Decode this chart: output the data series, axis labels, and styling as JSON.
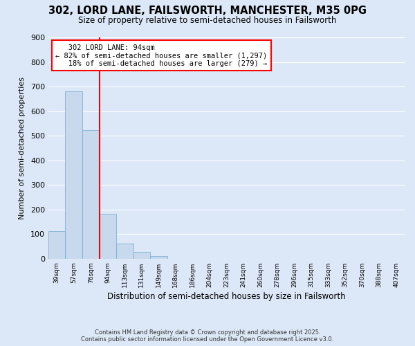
{
  "title": "302, LORD LANE, FAILSWORTH, MANCHESTER, M35 0PG",
  "subtitle": "Size of property relative to semi-detached houses in Failsworth",
  "xlabel": "Distribution of semi-detached houses by size in Failsworth",
  "ylabel": "Number of semi-detached properties",
  "categories": [
    "39sqm",
    "57sqm",
    "76sqm",
    "94sqm",
    "113sqm",
    "131sqm",
    "149sqm",
    "168sqm",
    "186sqm",
    "204sqm",
    "223sqm",
    "241sqm",
    "260sqm",
    "278sqm",
    "296sqm",
    "315sqm",
    "333sqm",
    "352sqm",
    "370sqm",
    "388sqm",
    "407sqm"
  ],
  "values": [
    113,
    681,
    522,
    183,
    62,
    29,
    10,
    0,
    0,
    0,
    0,
    0,
    0,
    0,
    0,
    0,
    0,
    0,
    0,
    0,
    0
  ],
  "bar_color": "#c8d9ed",
  "bar_edge_color": "#6fa8d0",
  "red_line_index": 3,
  "property_name": "302 LORD LANE: 94sqm",
  "pct_smaller": 82,
  "n_smaller": 1297,
  "pct_larger": 18,
  "n_larger": 279,
  "ylim": [
    0,
    900
  ],
  "yticks": [
    0,
    100,
    200,
    300,
    400,
    500,
    600,
    700,
    800,
    900
  ],
  "bg_color": "#dce8f7",
  "grid_color": "#ffffff",
  "footer1": "Contains HM Land Registry data © Crown copyright and database right 2025.",
  "footer2": "Contains public sector information licensed under the Open Government Licence v3.0."
}
